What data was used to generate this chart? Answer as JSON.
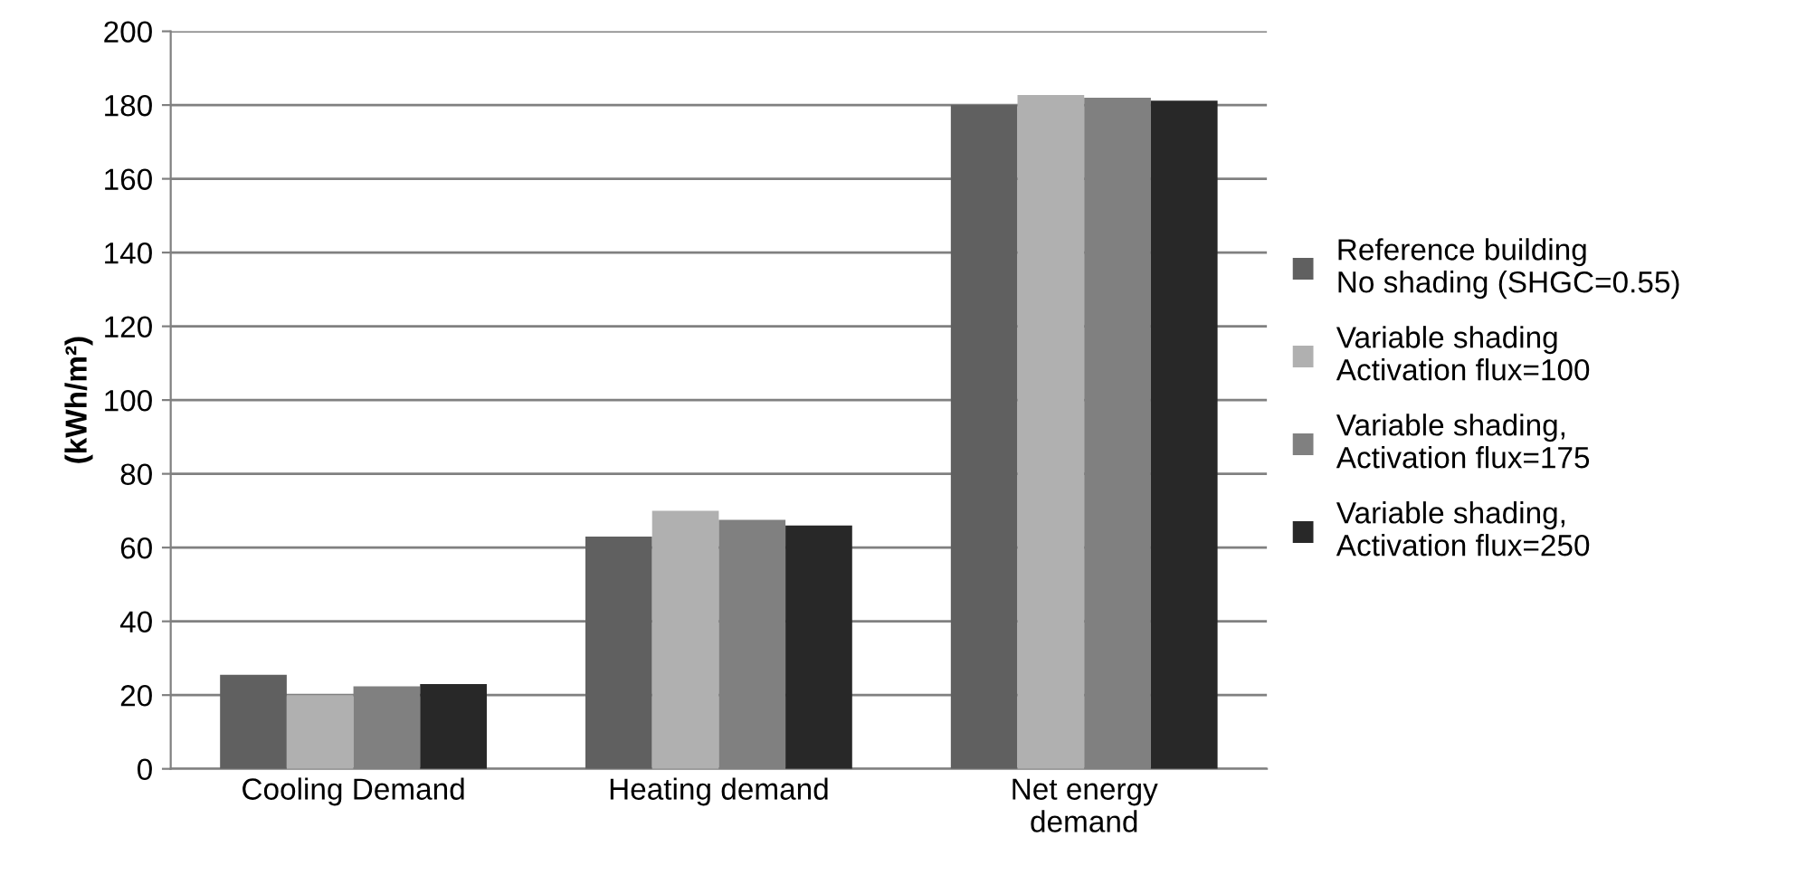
{
  "chart_data": {
    "type": "bar",
    "ylabel": "(kWh/m²)",
    "categories": [
      "Cooling Demand",
      "Heating demand",
      "Net energy\ndemand"
    ],
    "series": [
      {
        "name": "Reference building\nNo shading (SHGC=0.55)",
        "color": "#606060",
        "values": [
          25.5,
          63,
          180
        ]
      },
      {
        "name": "Variable shading\nActivation flux=100",
        "color": "#b0b0b0",
        "values": [
          20,
          70,
          182.7
        ]
      },
      {
        "name": "Variable shading,\nActivation flux=175",
        "color": "#808080",
        "values": [
          22.4,
          67.5,
          182
        ]
      },
      {
        "name": "Variable shading,\nActivation flux=250",
        "color": "#282828",
        "values": [
          23,
          66,
          181.2
        ]
      }
    ],
    "ylim": [
      0,
      200
    ],
    "yticks": [
      0,
      20,
      40,
      60,
      80,
      100,
      120,
      140,
      160,
      180,
      200
    ],
    "grid": "y",
    "legend": "right"
  }
}
